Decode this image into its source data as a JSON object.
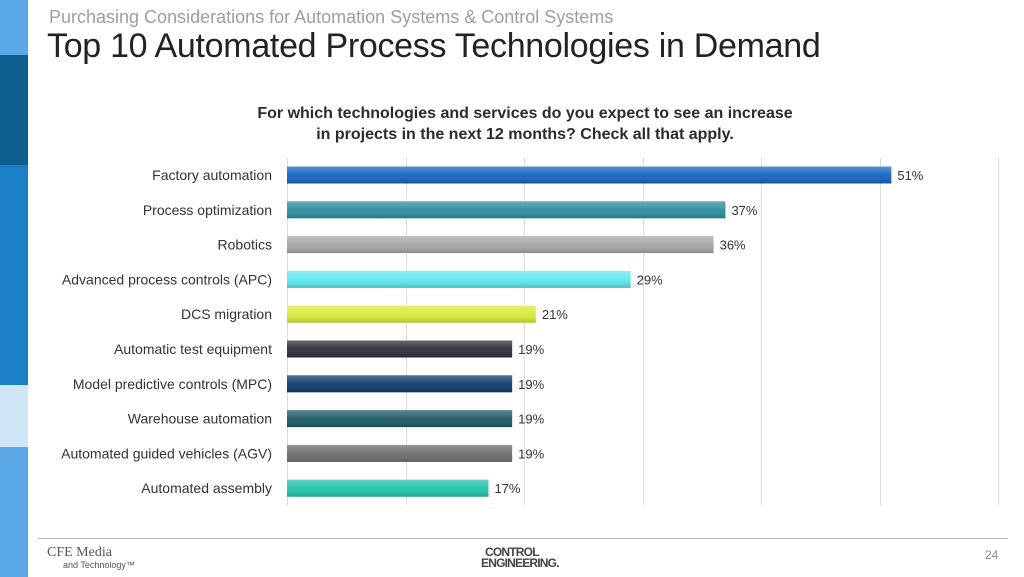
{
  "header": {
    "subtitle": "Purchasing Considerations for Automation Systems & Control Systems",
    "title": "Top 10 Automated Process Technologies in Demand"
  },
  "footer": {
    "cfe_line1": "CFE Media",
    "cfe_line2": "and Technology™",
    "ce_line1": "CONTROL",
    "ce_line2": "ENGINEERING.",
    "page_number": "24"
  },
  "colors": {
    "stripe": [
      "#5aa9e6",
      "#0d5d8f",
      "#1b7fc7",
      "#cfe6f7",
      "#5aa9e6"
    ]
  },
  "chart_data": {
    "type": "bar",
    "orientation": "horizontal",
    "title": "For which technologies and services do you expect to see an increase in projects in the next 12 months? Check all that apply.",
    "title_lines": [
      "For which technologies and services do you expect to see an increase",
      "in projects in the next 12 months? Check all that apply."
    ],
    "categories": [
      "Factory automation",
      "Process optimization",
      "Robotics",
      "Advanced process controls (APC)",
      "DCS migration",
      "Automatic test equipment",
      "Model predictive controls (MPC)",
      "Warehouse automation",
      "Automated guided vehicles (AGV)",
      "Automated assembly"
    ],
    "values": [
      51,
      37,
      36,
      29,
      21,
      19,
      19,
      19,
      19,
      17
    ],
    "value_labels": [
      "51%",
      "37%",
      "36%",
      "29%",
      "21%",
      "19%",
      "19%",
      "19%",
      "19%",
      "17%"
    ],
    "bar_colors": [
      "#1565c0",
      "#2a8d9e",
      "#a6a6a6",
      "#5ee7ee",
      "#d6ea3a",
      "#2e2c36",
      "#0f3b6a",
      "#1e5a63",
      "#6d6d6d",
      "#22c3ac"
    ],
    "xlim": [
      0,
      60
    ],
    "grid": true,
    "xlabel": "",
    "ylabel": ""
  }
}
